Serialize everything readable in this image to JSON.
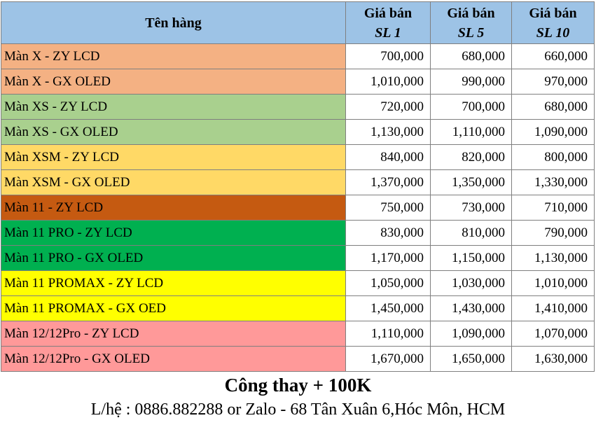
{
  "header": {
    "name_col": "Tên hàng",
    "price_cols": [
      {
        "line1": "Giá bán",
        "line2": "SL 1"
      },
      {
        "line1": "Giá bán",
        "line2": "SL 5"
      },
      {
        "line1": "Giá bán",
        "line2": "SL 10"
      }
    ]
  },
  "rows": [
    {
      "name": "Màn X - ZY LCD",
      "color": "#f4b183",
      "sl1": "700,000",
      "sl5": "680,000",
      "sl10": "660,000"
    },
    {
      "name": "Màn X - GX OLED",
      "color": "#f4b183",
      "sl1": "1,010,000",
      "sl5": "990,000",
      "sl10": "970,000"
    },
    {
      "name": "Màn XS - ZY LCD",
      "color": "#a9d08e",
      "sl1": "720,000",
      "sl5": "700,000",
      "sl10": "680,000"
    },
    {
      "name": "Màn XS - GX OLED",
      "color": "#a9d08e",
      "sl1": "1,130,000",
      "sl5": "1,110,000",
      "sl10": "1,090,000"
    },
    {
      "name": "Màn XSM - ZY LCD",
      "color": "#ffd966",
      "sl1": "840,000",
      "sl5": "820,000",
      "sl10": "800,000"
    },
    {
      "name": "Màn XSM - GX OLED",
      "color": "#ffd966",
      "sl1": "1,370,000",
      "sl5": "1,350,000",
      "sl10": "1,330,000"
    },
    {
      "name": "Màn 11 - ZY LCD",
      "color": "#c55a11",
      "sl1": "750,000",
      "sl5": "730,000",
      "sl10": "710,000"
    },
    {
      "name": "Màn 11 PRO - ZY LCD",
      "color": "#00b050",
      "sl1": "830,000",
      "sl5": "810,000",
      "sl10": "790,000"
    },
    {
      "name": "Màn 11 PRO - GX OLED",
      "color": "#00b050",
      "sl1": "1,170,000",
      "sl5": "1,150,000",
      "sl10": "1,130,000"
    },
    {
      "name": "Màn 11 PROMAX - ZY LCD",
      "color": "#ffff00",
      "sl1": "1,050,000",
      "sl5": "1,030,000",
      "sl10": "1,010,000"
    },
    {
      "name": "Màn 11 PROMAX - GX OED",
      "color": "#ffff00",
      "sl1": "1,450,000",
      "sl5": "1,430,000",
      "sl10": "1,410,000"
    },
    {
      "name": "Màn 12/12Pro - ZY LCD",
      "color": "#ff9999",
      "sl1": "1,110,000",
      "sl5": "1,090,000",
      "sl10": "1,070,000"
    },
    {
      "name": "Màn 12/12Pro - GX OLED",
      "color": "#ff9999",
      "sl1": "1,670,000",
      "sl5": "1,650,000",
      "sl10": "1,630,000"
    }
  ],
  "footer": {
    "line1": "Công thay + 100K",
    "line2": "L/hệ : 0886.882288 or Zalo - 68 Tân Xuân 6,Hóc Môn, HCM"
  }
}
